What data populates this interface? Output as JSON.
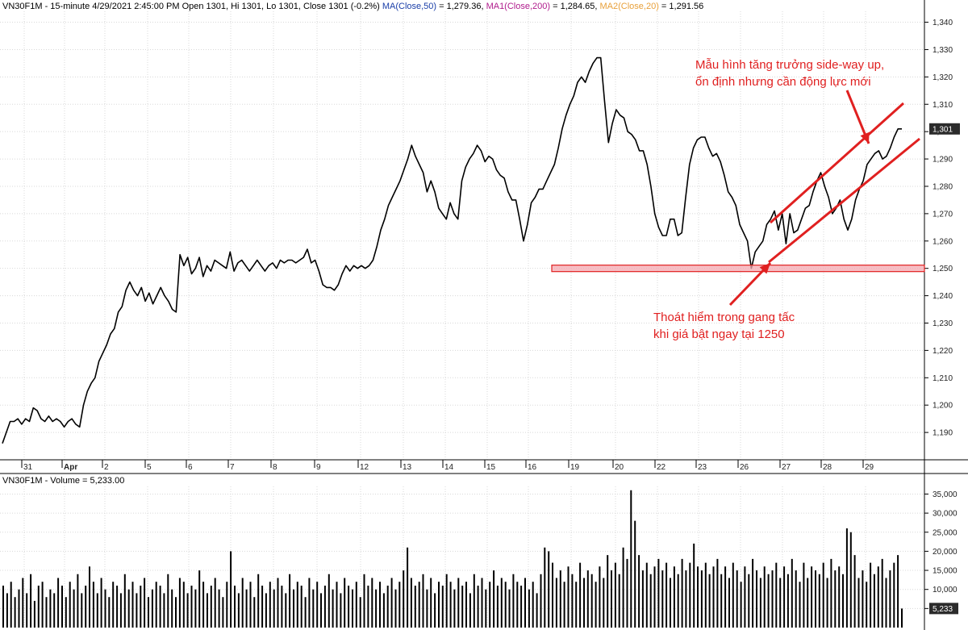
{
  "header": {
    "prefix": "VN30F1M - 15-minute 4/29/2021 2:45:00 PM Open 1301, Hi 1301, Lo 1301, Close 1301 (-0.2%) ",
    "ma0_label": "MA(Close,50)",
    "ma0_value": " = 1,279.36, ",
    "ma1_label": "MA1(Close,200)",
    "ma1_value": " = 1,284.65, ",
    "ma2_label": "MA2(Close,20)",
    "ma2_value": " = 1,291.56"
  },
  "volume_header": "VN30F1M - Volume = 5,233.00",
  "colors": {
    "ma0": "#1a3ea8",
    "ma1": "#b01c8c",
    "ma2": "#e8a03a",
    "annotation": "#e02020",
    "price": "#000000"
  },
  "chart_data": [
    {
      "type": "line",
      "series": [
        {
          "values": [
            1186,
            1190,
            1194,
            1194,
            1195,
            1193,
            1195,
            1194,
            1199,
            1198,
            1195,
            1194,
            1196,
            1194,
            1195,
            1194,
            1192,
            1194,
            1195,
            1193,
            1192,
            1200,
            1205,
            1208,
            1210,
            1216,
            1219,
            1222,
            1226,
            1228,
            1234,
            1236,
            1242,
            1245,
            1242,
            1240,
            1243,
            1238,
            1241,
            1237,
            1240,
            1243,
            1240,
            1238,
            1235,
            1234,
            1255,
            1251,
            1254,
            1248,
            1250,
            1254,
            1247,
            1251,
            1249,
            1253,
            1252,
            1251,
            1250,
            1256,
            1249,
            1252,
            1253,
            1251,
            1249,
            1251,
            1253,
            1251,
            1249,
            1251,
            1252,
            1250,
            1253,
            1252,
            1253,
            1253,
            1252,
            1253,
            1254,
            1257,
            1252,
            1253,
            1249,
            1244,
            1243,
            1243,
            1242,
            1244,
            1248,
            1251,
            1249,
            1251,
            1250,
            1251,
            1250,
            1251,
            1253,
            1258,
            1264,
            1268,
            1273,
            1276,
            1279,
            1282,
            1286,
            1290,
            1295,
            1291,
            1288,
            1285,
            1278,
            1282,
            1278,
            1272,
            1270,
            1268,
            1274,
            1270,
            1268,
            1282,
            1287,
            1290,
            1292,
            1295,
            1293,
            1289,
            1291,
            1290,
            1286,
            1284,
            1283,
            1278,
            1275,
            1275,
            1268,
            1260,
            1266,
            1274,
            1276,
            1279,
            1279,
            1282,
            1285,
            1288,
            1294,
            1301,
            1306,
            1310,
            1313,
            1318,
            1320,
            1318,
            1322,
            1325,
            1327,
            1327,
            1311,
            1296,
            1303,
            1308,
            1306,
            1305,
            1300,
            1299,
            1297,
            1293,
            1293,
            1288,
            1280,
            1270,
            1265,
            1262,
            1262,
            1268,
            1268,
            1262,
            1263,
            1276,
            1288,
            1294,
            1297,
            1298,
            1298,
            1294,
            1291,
            1292,
            1289,
            1284,
            1278,
            1276,
            1273,
            1266,
            1263,
            1260,
            1250,
            1256,
            1258,
            1260,
            1266,
            1268,
            1271,
            1264,
            1270,
            1259,
            1270,
            1263,
            1264,
            1268,
            1272,
            1273,
            1278,
            1282,
            1285,
            1280,
            1276,
            1270,
            1272,
            1275,
            1268,
            1264,
            1268,
            1275,
            1279,
            1282,
            1288,
            1290,
            1292,
            1293,
            1290,
            1291,
            1294,
            1298,
            1301,
            1301
          ]
        }
      ],
      "xlim": [
        0,
        1146
      ],
      "ylim": [
        1180,
        1344
      ],
      "yticks": [
        "1,190",
        "1,200",
        "1,210",
        "1,220",
        "1,230",
        "1,240",
        "1,250",
        "1,260",
        "1,270",
        "1,280",
        "1,290",
        "1,300",
        "1,310",
        "1,320",
        "1,330",
        "1,340"
      ],
      "xticks": [
        "31",
        "Apr",
        "2",
        "5",
        "6",
        "7",
        "8",
        "9",
        "12",
        "13",
        "14",
        "15",
        "16",
        "19",
        "20",
        "22",
        "23",
        "26",
        "27",
        "28",
        "29"
      ],
      "last_price_label": "1,301",
      "support_level": 1250,
      "grid": true,
      "annotations": [
        {
          "text_line1": "Mẫu hình tăng trưởng side-way up,",
          "text_line2": "ổn định nhưng cần động lực mới"
        },
        {
          "text_line1": "Thoát hiểm trong gang tấc",
          "text_line2": "khi giá bật ngay tại 1250"
        }
      ]
    },
    {
      "type": "bar",
      "series": [
        {
          "values": [
            11,
            9,
            12,
            8,
            10,
            13,
            9,
            14,
            7,
            11,
            12,
            8,
            10,
            9,
            13,
            11,
            8,
            12,
            10,
            14,
            9,
            11,
            16,
            12,
            9,
            13,
            10,
            8,
            12,
            11,
            9,
            14,
            10,
            12,
            9,
            11,
            13,
            8,
            10,
            12,
            11,
            9,
            14,
            10,
            8,
            13,
            12,
            9,
            11,
            10,
            15,
            12,
            9,
            11,
            13,
            10,
            8,
            12,
            20,
            11,
            9,
            13,
            10,
            12,
            8,
            14,
            11,
            9,
            12,
            10,
            13,
            11,
            9,
            14,
            10,
            12,
            11,
            8,
            13,
            10,
            12,
            9,
            11,
            14,
            10,
            12,
            9,
            13,
            11,
            10,
            12,
            8,
            14,
            11,
            13,
            10,
            12,
            9,
            11,
            13,
            10,
            12,
            15,
            21,
            13,
            11,
            12,
            14,
            10,
            13,
            9,
            12,
            11,
            14,
            12,
            10,
            13,
            11,
            12,
            9,
            14,
            11,
            13,
            10,
            12,
            15,
            11,
            13,
            12,
            10,
            14,
            12,
            11,
            13,
            10,
            12,
            9,
            14,
            21,
            20,
            17,
            13,
            15,
            12,
            16,
            14,
            12,
            17,
            13,
            15,
            14,
            12,
            16,
            13,
            19,
            15,
            17,
            14,
            21,
            18,
            36,
            28,
            19,
            15,
            17,
            14,
            16,
            18,
            15,
            17,
            13,
            16,
            14,
            18,
            15,
            17,
            22,
            16,
            15,
            17,
            14,
            16,
            18,
            14,
            16,
            13,
            17,
            15,
            12,
            16,
            14,
            18,
            15,
            13,
            16,
            14,
            15,
            17,
            13,
            16,
            14,
            18,
            15,
            12,
            17,
            13,
            16,
            15,
            14,
            17,
            13,
            18,
            15,
            16,
            14,
            26,
            25,
            19,
            13,
            15,
            12,
            17,
            14,
            16,
            18,
            13,
            15,
            17,
            19,
            5
          ]
        }
      ],
      "ylim": [
        0,
        37000
      ],
      "yticks": [
        "5,000",
        "10,000",
        "15,000",
        "20,000",
        "25,000",
        "30,000",
        "35,000"
      ],
      "last_value_label": "5,233",
      "grid": true
    }
  ]
}
